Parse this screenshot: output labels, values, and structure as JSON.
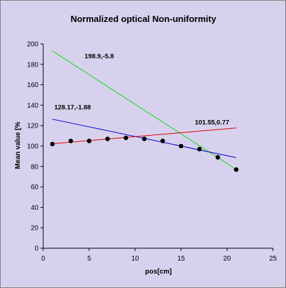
{
  "chart_data": {
    "type": "scatter",
    "title": "Normalized optical Non-uniformity",
    "xlabel": "pos[cm]",
    "ylabel": "Mean value [%",
    "xlim": [
      0,
      25
    ],
    "ylim": [
      0,
      200
    ],
    "x_ticks": [
      0,
      5,
      10,
      15,
      20,
      25
    ],
    "y_ticks": [
      0,
      20,
      40,
      60,
      80,
      100,
      120,
      140,
      160,
      180,
      200
    ],
    "grid": false,
    "series": [
      {
        "kind": "markers",
        "color": "#000000",
        "x": [
          1,
          3,
          5,
          7,
          9,
          11,
          13,
          15,
          17,
          19,
          21
        ],
        "y": [
          102,
          105,
          105,
          107,
          108,
          107,
          105,
          100,
          97,
          89,
          77
        ]
      },
      {
        "kind": "line",
        "color": "#00dd00",
        "x": [
          1,
          21
        ],
        "y": [
          193.1,
          77.1
        ]
      },
      {
        "kind": "line",
        "color": "#0000cc",
        "x": [
          1,
          21
        ],
        "y": [
          126.3,
          88.7
        ]
      },
      {
        "kind": "line",
        "color": "#dd0000",
        "x": [
          1,
          21
        ],
        "y": [
          102.3,
          117.7
        ]
      }
    ],
    "annotations": [
      {
        "text": "198.9,-5.8",
        "x": 4.5,
        "y": 186
      },
      {
        "text": "128.17,-1.88",
        "x": 1.2,
        "y": 136
      },
      {
        "text": "101.55,0.77",
        "x": 16.5,
        "y": 121
      }
    ]
  }
}
